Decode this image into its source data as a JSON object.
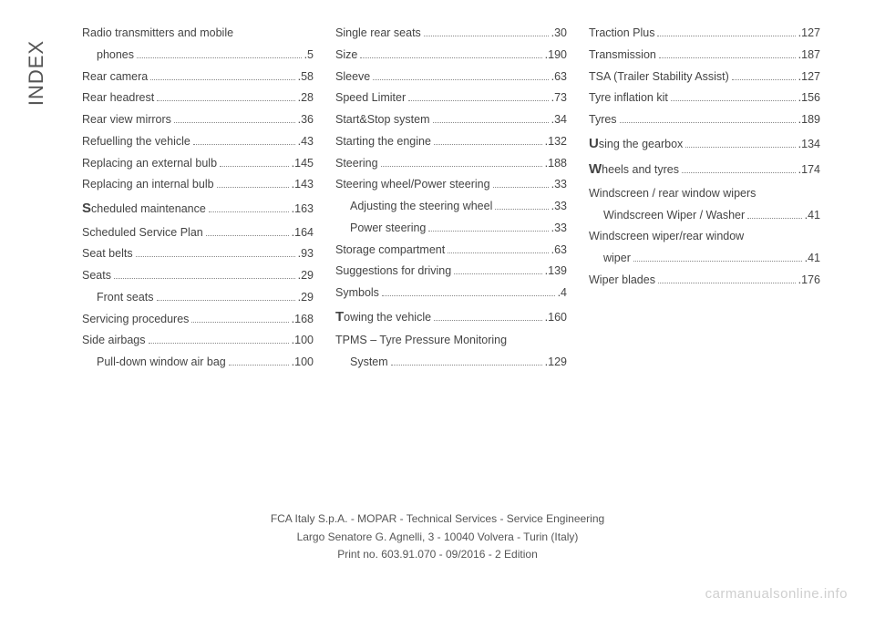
{
  "side_label": "INDEX",
  "columns": [
    [
      {
        "label": "Radio transmitters and mobile",
        "cont": true
      },
      {
        "label": "phones",
        "page": ".5",
        "indent": 1
      },
      {
        "label": "Rear camera",
        "page": ".58"
      },
      {
        "label": "Rear headrest",
        "page": ".28"
      },
      {
        "label": "Rear view mirrors",
        "page": ".36"
      },
      {
        "label": "Refuelling the vehicle",
        "page": ".43"
      },
      {
        "label": "Replacing an external bulb",
        "page": ".145"
      },
      {
        "label": "Replacing an internal bulb",
        "page": ".143"
      },
      {
        "label_big": "S",
        "label_rest": "cheduled maintenance",
        "page": ".163"
      },
      {
        "label": "Scheduled Service Plan",
        "page": ".164"
      },
      {
        "label": "Seat belts",
        "page": ".93"
      },
      {
        "label": "Seats",
        "page": ".29"
      },
      {
        "label": "Front seats",
        "page": ".29",
        "indent": 1
      },
      {
        "label": "Servicing procedures",
        "page": ".168"
      },
      {
        "label": "Side airbags",
        "page": ".100"
      },
      {
        "label": "Pull-down window air bag",
        "page": ".100",
        "indent": 1
      }
    ],
    [
      {
        "label": "Single rear seats",
        "page": ".30"
      },
      {
        "label": "Size",
        "page": ".190"
      },
      {
        "label": "Sleeve",
        "page": ".63"
      },
      {
        "label": "Speed Limiter",
        "page": ".73"
      },
      {
        "label": "Start&Stop system",
        "page": ".34"
      },
      {
        "label": "Starting the engine",
        "page": ".132"
      },
      {
        "label": "Steering",
        "page": ".188"
      },
      {
        "label": "Steering wheel/Power steering",
        "page": ".33"
      },
      {
        "label": "Adjusting the steering wheel",
        "page": ".33",
        "indent": 1
      },
      {
        "label": "Power steering",
        "page": ".33",
        "indent": 1
      },
      {
        "label": "Storage compartment",
        "page": ".63"
      },
      {
        "label": "Suggestions for driving",
        "page": ".139"
      },
      {
        "label": "Symbols",
        "page": ".4"
      },
      {
        "label_big": "T",
        "label_rest": "owing the vehicle",
        "page": ".160"
      },
      {
        "label": "TPMS – Tyre Pressure Monitoring",
        "cont": true
      },
      {
        "label": "System",
        "page": ".129",
        "indent": 1
      }
    ],
    [
      {
        "label": "Traction Plus",
        "page": ".127"
      },
      {
        "label": "Transmission",
        "page": ".187"
      },
      {
        "label": "TSA (Trailer Stability Assist)",
        "page": ".127"
      },
      {
        "label": "Tyre inflation kit",
        "page": ".156"
      },
      {
        "label": "Tyres",
        "page": ".189"
      },
      {
        "label_big": "U",
        "label_rest": "sing the gearbox",
        "page": ".134"
      },
      {
        "label_big": "W",
        "label_rest": "heels and tyres",
        "page": ".174"
      },
      {
        "label": "Windscreen / rear window wipers",
        "cont": true
      },
      {
        "label": "Windscreen Wiper / Washer",
        "page": ".41",
        "indent": 1
      },
      {
        "label": "Windscreen wiper/rear window",
        "cont": true
      },
      {
        "label": "wiper",
        "page": ".41",
        "indent": 1
      },
      {
        "label": "Wiper blades",
        "page": ".176"
      }
    ]
  ],
  "footer": {
    "line1": "FCA Italy S.p.A. - MOPAR - Technical Services - Service Engineering",
    "line2": "Largo Senatore G. Agnelli, 3 - 10040 Volvera - Turin (Italy)",
    "line3": "Print no. 603.91.070 - 09/2016 - 2 Edition"
  },
  "watermark": "carmanualsonline.info"
}
